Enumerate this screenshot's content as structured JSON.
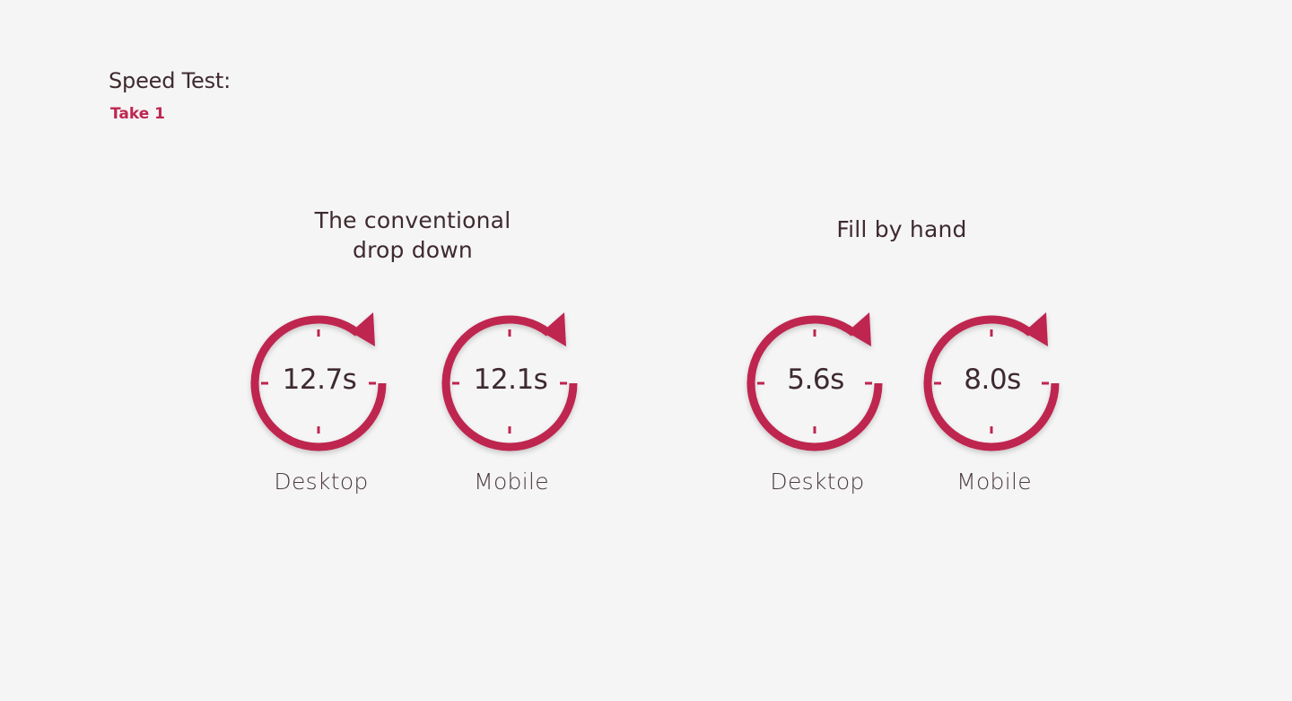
{
  "header": {
    "title": "Speed Test:",
    "subtitle": "Take 1"
  },
  "groups": [
    {
      "title_lines": [
        "The conventional",
        "drop down"
      ],
      "timers": [
        {
          "value": "12.7s",
          "label": "Desktop"
        },
        {
          "value": "12.1s",
          "label": "Mobile"
        }
      ]
    },
    {
      "title_lines": [
        "Fill by hand"
      ],
      "timers": [
        {
          "value": "5.6s",
          "label": "Desktop"
        },
        {
          "value": "8.0s",
          "label": "Mobile"
        }
      ]
    }
  ],
  "colors": {
    "accent": "#be2650",
    "text": "#3e2a2f",
    "background": "#f5f5f5"
  },
  "icons": {
    "timer": "stopwatch-refresh-icon"
  }
}
